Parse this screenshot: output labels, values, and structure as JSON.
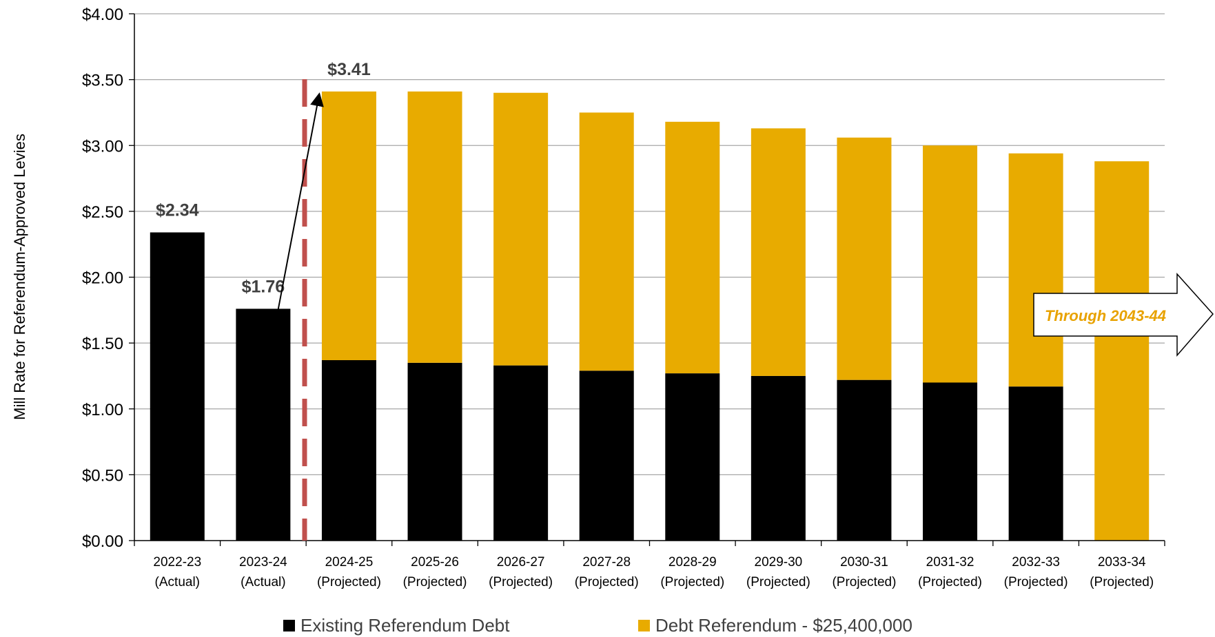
{
  "chart_data": {
    "type": "bar",
    "stacked": true,
    "title": "",
    "ylabel": "Mill Rate for Referendum-Approved Levies",
    "xlabel": "",
    "ylim": [
      0,
      4
    ],
    "yticks": [
      "$0.00",
      "$0.50",
      "$1.00",
      "$1.50",
      "$2.00",
      "$2.50",
      "$3.00",
      "$3.50",
      "$4.00"
    ],
    "yticks_values": [
      0,
      0.5,
      1,
      1.5,
      2,
      2.5,
      3,
      3.5,
      4
    ],
    "grid": true,
    "legend_position": "bottom",
    "categories": [
      [
        "2022-23",
        "(Actual)"
      ],
      [
        "2023-24",
        "(Actual)"
      ],
      [
        "2024-25",
        "(Projected)"
      ],
      [
        "2025-26",
        "(Projected)"
      ],
      [
        "2026-27",
        "(Projected)"
      ],
      [
        "2027-28",
        "(Projected)"
      ],
      [
        "2028-29",
        "(Projected)"
      ],
      [
        "2029-30",
        "(Projected)"
      ],
      [
        "2030-31",
        "(Projected)"
      ],
      [
        "2031-32",
        "(Projected)"
      ],
      [
        "2032-33",
        "(Projected)"
      ],
      [
        "2033-34",
        "(Projected)"
      ]
    ],
    "series": [
      {
        "name": "Existing Referendum Debt",
        "color": "#000000",
        "values": [
          2.34,
          1.76,
          1.37,
          1.35,
          1.33,
          1.29,
          1.27,
          1.25,
          1.22,
          1.2,
          1.17,
          0
        ]
      },
      {
        "name": "Debt Referendum - $25,400,000",
        "color": "#E8AB00",
        "values": [
          0,
          0,
          2.04,
          2.06,
          2.07,
          1.96,
          1.91,
          1.88,
          1.84,
          1.8,
          1.77,
          2.88
        ]
      }
    ],
    "data_labels": [
      {
        "category_index": 0,
        "text": "$2.34"
      },
      {
        "category_index": 1,
        "text": "$1.76"
      },
      {
        "category_index": 2,
        "text": "$3.41"
      }
    ],
    "annotations": {
      "divider_color": "#C0504D",
      "callout_text": "Through 2043-44",
      "callout_color": "#E8A200"
    }
  }
}
